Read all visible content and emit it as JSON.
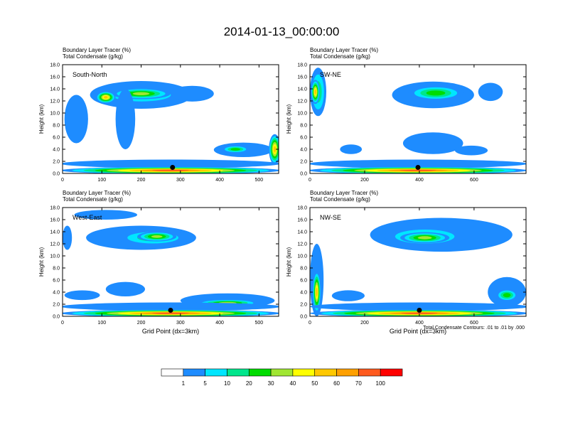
{
  "title": "2014-01-13_00:00:00",
  "footnote": "Total Condensate Contours: .01 to .01 by .000",
  "colors": [
    "#ffffff",
    "#1e8cff",
    "#00e6ff",
    "#00e68c",
    "#00dc00",
    "#a0e632",
    "#ffff00",
    "#ffc800",
    "#ffa000",
    "#ff5a1e",
    "#ff0000"
  ],
  "colorbar": {
    "labels": [
      "1",
      "5",
      "10",
      "20",
      "30",
      "40",
      "50",
      "60",
      "70",
      "100"
    ]
  },
  "chart_data": [
    {
      "type": "heatmap",
      "panel_label": "South-North",
      "field_labels": [
        "Boundary Layer Tracer   (%)",
        "Total Condensate   (g/kg)"
      ],
      "ylabel": "Height (km)",
      "xlabel": "",
      "xlim": [
        0,
        550
      ],
      "x_ticks": [
        0,
        100,
        200,
        300,
        400,
        500
      ],
      "ylim": [
        0,
        18
      ],
      "y_ticks": [
        "0.0",
        "2.0",
        "4.0",
        "6.0",
        "8.0",
        "10.0",
        "12.0",
        "14.0",
        "16.0",
        "18.0"
      ],
      "marker": {
        "x": 280,
        "y": 1.0
      },
      "blobs": [
        {
          "x": 200,
          "y": 13.0,
          "rx": 130,
          "ry": 2.3,
          "level": 1
        },
        {
          "x": 200,
          "y": 13.0,
          "rx": 105,
          "ry": 1.5,
          "level": 3
        },
        {
          "x": 200,
          "y": 13.2,
          "rx": 75,
          "ry": 0.9,
          "level": 5
        },
        {
          "x": 110,
          "y": 12.6,
          "rx": 25,
          "ry": 1.0,
          "level": 7
        },
        {
          "x": 35,
          "y": 9.0,
          "rx": 30,
          "ry": 4.0,
          "level": 1
        },
        {
          "x": 160,
          "y": 9.0,
          "rx": 25,
          "ry": 5.0,
          "level": 1
        },
        {
          "x": 330,
          "y": 13.2,
          "rx": 55,
          "ry": 1.3,
          "level": 1
        },
        {
          "x": 460,
          "y": 3.9,
          "rx": 75,
          "ry": 1.2,
          "level": 1
        },
        {
          "x": 440,
          "y": 4.0,
          "rx": 35,
          "ry": 0.6,
          "level": 4
        },
        {
          "x": 540,
          "y": 4.0,
          "rx": 15,
          "ry": 2.5,
          "level": 7
        },
        {
          "x": 275,
          "y": 1.6,
          "rx": 280,
          "ry": 0.7,
          "level": 1
        },
        {
          "x": 275,
          "y": 0.5,
          "rx": 280,
          "ry": 0.6,
          "level": 9
        }
      ]
    },
    {
      "type": "heatmap",
      "panel_label": "SW-NE",
      "field_labels": [
        "Boundary Layer Tracer   (%)",
        "Total Condensate   (g/kg)"
      ],
      "ylabel": "Height (km)",
      "xlabel": "",
      "xlim": [
        0,
        790
      ],
      "x_ticks": [
        0,
        200,
        400,
        600
      ],
      "ylim": [
        0,
        18
      ],
      "y_ticks": [
        "0.0",
        "2.0",
        "4.0",
        "6.0",
        "8.0",
        "10.0",
        "12.0",
        "14.0",
        "16.0",
        "18.0"
      ],
      "marker": {
        "x": 395,
        "y": 1.0
      },
      "blobs": [
        {
          "x": 30,
          "y": 13.5,
          "rx": 30,
          "ry": 4.0,
          "level": 3
        },
        {
          "x": 20,
          "y": 13.5,
          "rx": 16,
          "ry": 2.0,
          "level": 7
        },
        {
          "x": 450,
          "y": 13.0,
          "rx": 150,
          "ry": 2.2,
          "level": 1
        },
        {
          "x": 460,
          "y": 13.3,
          "rx": 100,
          "ry": 1.2,
          "level": 4
        },
        {
          "x": 660,
          "y": 13.5,
          "rx": 45,
          "ry": 1.5,
          "level": 1
        },
        {
          "x": 450,
          "y": 5.0,
          "rx": 110,
          "ry": 1.8,
          "level": 1
        },
        {
          "x": 150,
          "y": 4.0,
          "rx": 40,
          "ry": 0.8,
          "level": 1
        },
        {
          "x": 590,
          "y": 3.8,
          "rx": 60,
          "ry": 0.8,
          "level": 1
        },
        {
          "x": 395,
          "y": 1.6,
          "rx": 400,
          "ry": 0.7,
          "level": 1
        },
        {
          "x": 395,
          "y": 0.5,
          "rx": 400,
          "ry": 0.6,
          "level": 9
        }
      ]
    },
    {
      "type": "heatmap",
      "panel_label": "West-East",
      "field_labels": [
        "Boundary Layer Tracer   (%)",
        "Total Condensate   (g/kg)"
      ],
      "ylabel": "Height (km)",
      "xlabel": "Grid Point (dx=3km)",
      "xlim": [
        0,
        550
      ],
      "x_ticks": [
        0,
        100,
        200,
        300,
        400,
        500
      ],
      "ylim": [
        0,
        18
      ],
      "y_ticks": [
        "0.0",
        "2.0",
        "4.0",
        "6.0",
        "8.0",
        "10.0",
        "12.0",
        "14.0",
        "16.0",
        "18.0"
      ],
      "marker": {
        "x": 275,
        "y": 1.0
      },
      "blobs": [
        {
          "x": 200,
          "y": 13.0,
          "rx": 140,
          "ry": 2.0,
          "level": 1
        },
        {
          "x": 230,
          "y": 13.0,
          "rx": 90,
          "ry": 1.3,
          "level": 3
        },
        {
          "x": 240,
          "y": 13.2,
          "rx": 50,
          "ry": 0.8,
          "level": 5
        },
        {
          "x": 110,
          "y": 16.8,
          "rx": 80,
          "ry": 0.8,
          "level": 1
        },
        {
          "x": 12,
          "y": 13.0,
          "rx": 12,
          "ry": 2.0,
          "level": 1
        },
        {
          "x": 160,
          "y": 4.5,
          "rx": 50,
          "ry": 1.2,
          "level": 1
        },
        {
          "x": 50,
          "y": 3.5,
          "rx": 45,
          "ry": 0.8,
          "level": 1
        },
        {
          "x": 420,
          "y": 2.6,
          "rx": 120,
          "ry": 1.2,
          "level": 1
        },
        {
          "x": 420,
          "y": 2.2,
          "rx": 80,
          "ry": 0.6,
          "level": 5
        },
        {
          "x": 275,
          "y": 1.6,
          "rx": 280,
          "ry": 0.7,
          "level": 1
        },
        {
          "x": 275,
          "y": 0.5,
          "rx": 280,
          "ry": 0.6,
          "level": 9
        }
      ]
    },
    {
      "type": "heatmap",
      "panel_label": "NW-SE",
      "field_labels": [
        "Boundary Layer Tracer   (%)",
        "Total Condensate   (g/kg)"
      ],
      "ylabel": "Height (km)",
      "xlabel": "Grid Point (dx=3km)",
      "xlim": [
        0,
        790
      ],
      "x_ticks": [
        0,
        200,
        400,
        600
      ],
      "ylim": [
        0,
        18
      ],
      "y_ticks": [
        "0.0",
        "2.0",
        "4.0",
        "6.0",
        "8.0",
        "10.0",
        "12.0",
        "14.0",
        "16.0",
        "18.0"
      ],
      "marker": {
        "x": 400,
        "y": 1.0
      },
      "blobs": [
        {
          "x": 480,
          "y": 13.5,
          "rx": 260,
          "ry": 2.8,
          "level": 1
        },
        {
          "x": 420,
          "y": 13.2,
          "rx": 150,
          "ry": 1.6,
          "level": 3
        },
        {
          "x": 420,
          "y": 13.0,
          "rx": 90,
          "ry": 0.9,
          "level": 5
        },
        {
          "x": 25,
          "y": 6.0,
          "rx": 25,
          "ry": 6.0,
          "level": 1
        },
        {
          "x": 25,
          "y": 4.0,
          "rx": 15,
          "ry": 3.5,
          "level": 7
        },
        {
          "x": 140,
          "y": 3.4,
          "rx": 60,
          "ry": 0.9,
          "level": 1
        },
        {
          "x": 720,
          "y": 4.0,
          "rx": 70,
          "ry": 2.5,
          "level": 1
        },
        {
          "x": 720,
          "y": 3.5,
          "rx": 40,
          "ry": 1.0,
          "level": 4
        },
        {
          "x": 400,
          "y": 1.6,
          "rx": 400,
          "ry": 0.7,
          "level": 1
        },
        {
          "x": 400,
          "y": 0.5,
          "rx": 400,
          "ry": 0.6,
          "level": 9
        }
      ]
    }
  ]
}
